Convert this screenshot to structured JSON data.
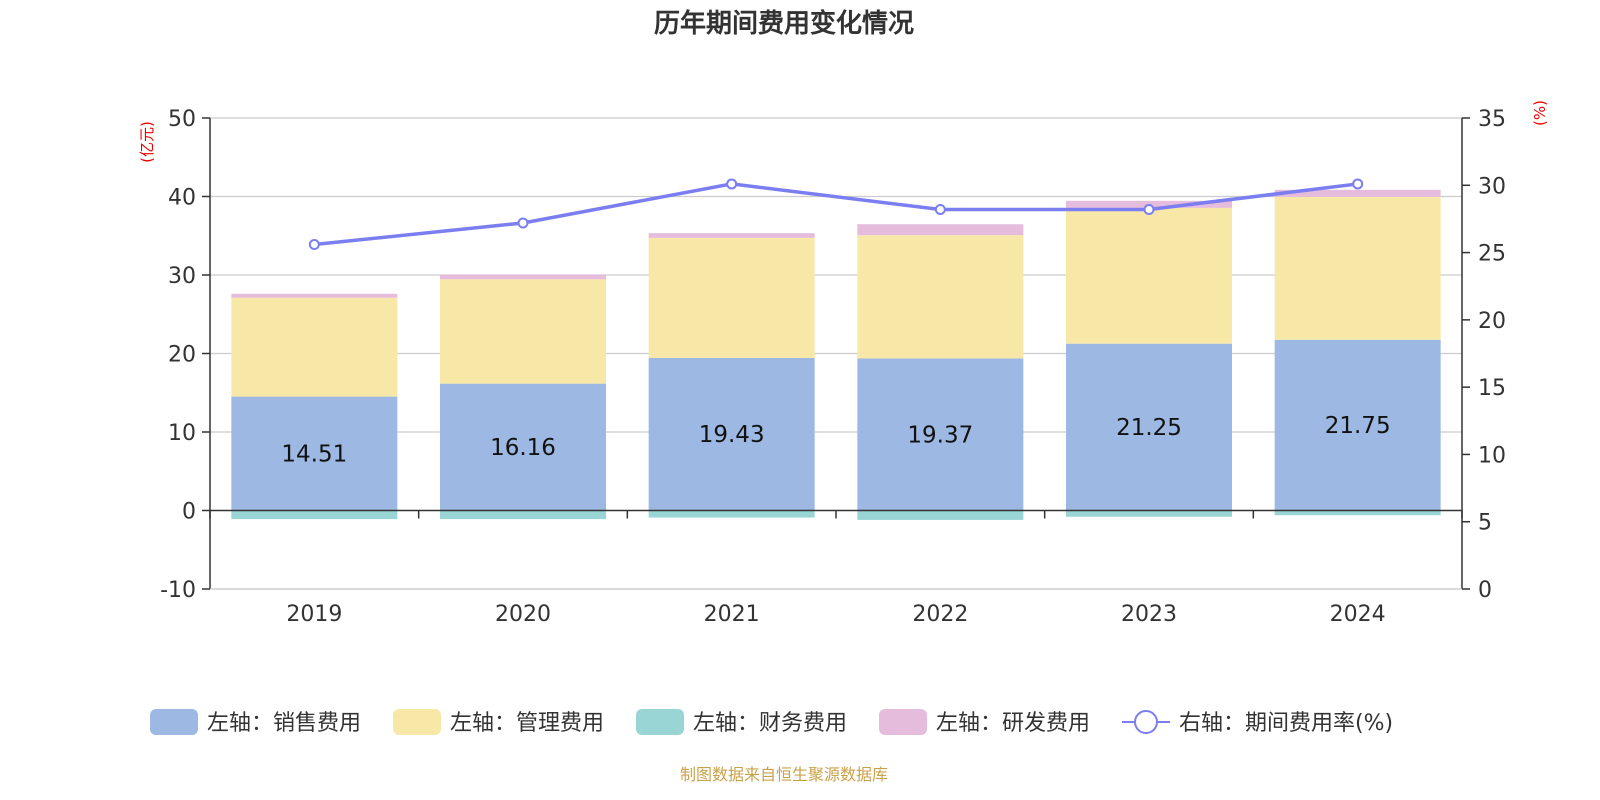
{
  "chart_data": {
    "type": "bar",
    "title": "历年期间费用变化情况",
    "categories": [
      "2019",
      "2020",
      "2021",
      "2022",
      "2023",
      "2024"
    ],
    "left_axis": {
      "unit": "(亿元)",
      "ylim": [
        -10,
        50
      ],
      "ticks": [
        -10,
        0,
        10,
        20,
        30,
        40,
        50
      ]
    },
    "right_axis": {
      "unit": "(%)",
      "ylim": [
        0,
        35
      ],
      "ticks": [
        0,
        5,
        10,
        15,
        20,
        25,
        30,
        35
      ]
    },
    "series": [
      {
        "name": "左轴：销售费用",
        "axis": "left",
        "type": "bar",
        "color": "#9db8e2",
        "values": [
          14.51,
          16.16,
          19.43,
          19.37,
          21.25,
          21.75
        ],
        "labels": [
          "14.51",
          "16.16",
          "19.43",
          "19.37",
          "21.25",
          "21.75"
        ]
      },
      {
        "name": "左轴：管理费用",
        "axis": "left",
        "type": "bar",
        "color": "#f7e8a8",
        "values": [
          12.6,
          13.3,
          15.3,
          15.7,
          17.3,
          18.2
        ]
      },
      {
        "name": "左轴：财务费用",
        "axis": "left",
        "type": "bar",
        "color": "#99d5d4",
        "values": [
          -1.1,
          -1.1,
          -0.9,
          -1.2,
          -0.8,
          -0.6
        ]
      },
      {
        "name": "左轴：研发费用",
        "axis": "left",
        "type": "bar",
        "color": "#e6bcdc",
        "values": [
          0.5,
          0.6,
          0.6,
          1.4,
          0.9,
          0.9
        ]
      },
      {
        "name": "右轴：期间费用率(%)",
        "axis": "right",
        "type": "line",
        "color": "#7b7ef0",
        "values": [
          25.6,
          27.2,
          30.1,
          28.2,
          28.2,
          30.1
        ]
      }
    ],
    "grid": true,
    "legend_position": "bottom"
  },
  "source_note": "制图数据来自恒生聚源数据库"
}
